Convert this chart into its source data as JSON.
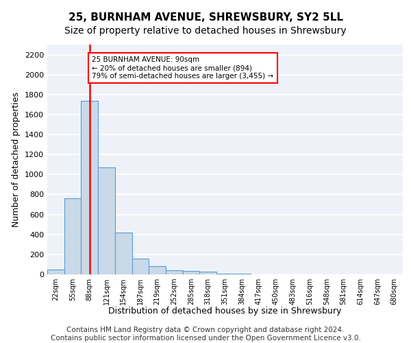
{
  "title1": "25, BURNHAM AVENUE, SHREWSBURY, SY2 5LL",
  "title2": "Size of property relative to detached houses in Shrewsbury",
  "xlabel": "Distribution of detached houses by size in Shrewsbury",
  "ylabel": "Number of detached properties",
  "bin_labels": [
    "22sqm",
    "55sqm",
    "88sqm",
    "121sqm",
    "154sqm",
    "187sqm",
    "219sqm",
    "252sqm",
    "285sqm",
    "318sqm",
    "351sqm",
    "384sqm",
    "417sqm",
    "450sqm",
    "483sqm",
    "516sqm",
    "548sqm",
    "581sqm",
    "614sqm",
    "647sqm",
    "680sqm"
  ],
  "bar_heights": [
    50,
    760,
    1740,
    1070,
    420,
    155,
    85,
    40,
    35,
    25,
    10,
    5,
    3,
    2,
    1,
    1,
    1,
    0,
    0,
    0,
    0
  ],
  "bar_color": "#c9d9e8",
  "bar_edge_color": "#5b9bd5",
  "bar_width": 1.0,
  "property_bin_index": 2,
  "red_line_color": "#ff0000",
  "annotation_text": "25 BURNHAM AVENUE: 90sqm\n← 20% of detached houses are smaller (894)\n79% of semi-detached houses are larger (3,455) →",
  "annotation_box_color": "#ffffff",
  "annotation_box_edge_color": "#ff0000",
  "ylim": [
    0,
    2300
  ],
  "yticks": [
    0,
    200,
    400,
    600,
    800,
    1000,
    1200,
    1400,
    1600,
    1800,
    2000,
    2200
  ],
  "footer_text": "Contains HM Land Registry data © Crown copyright and database right 2024.\nContains public sector information licensed under the Open Government Licence v3.0.",
  "background_color": "#eef2f8",
  "grid_color": "#ffffff",
  "title1_fontsize": 11,
  "title2_fontsize": 10,
  "xlabel_fontsize": 9,
  "ylabel_fontsize": 9,
  "footer_fontsize": 7.5
}
